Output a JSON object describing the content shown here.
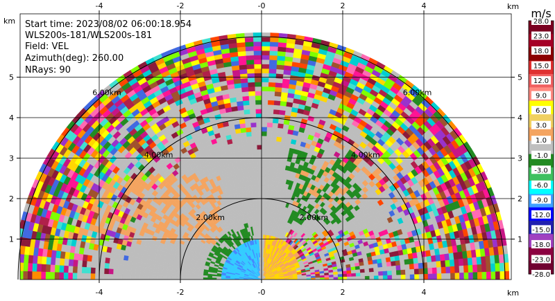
{
  "info": {
    "start_time": "Start time: 2023/08/02 06:00:18.954",
    "instrument": "WLS200s-181/WLS200s-181",
    "field": "Field: VEL",
    "azimuth": "Azimuth(deg): 260.00",
    "nrays": "NRays: 90"
  },
  "axes": {
    "x_ticks": [
      "-4",
      "-2",
      "-0",
      "2",
      "4"
    ],
    "x_tick_values": [
      -4,
      -2,
      0,
      2,
      4
    ],
    "y_ticks": [
      "1",
      "2",
      "3",
      "4",
      "5"
    ],
    "y_tick_values": [
      1,
      2,
      3,
      4,
      5
    ],
    "unit": "km",
    "x_range": [
      -5.95,
      6.05
    ],
    "y_range": [
      0,
      5.95
    ]
  },
  "rings": {
    "labels": [
      "2.00km",
      "4.00km",
      "6.00km"
    ],
    "radii_km": [
      2,
      4,
      6
    ]
  },
  "colorbar": {
    "unit": "m/s",
    "labels": [
      "28.0",
      "23.0",
      "18.0",
      "15.0",
      "12.0",
      "9.0",
      "6.0",
      "3.0",
      "1.0",
      "-1.0",
      "-3.0",
      "-6.0",
      "-9.0",
      "-12.0",
      "-15.0",
      "-18.0",
      "-23.0",
      "-28.0"
    ],
    "colors": [
      "#7a0020",
      "#a50026",
      "#8b0000",
      "#e03030",
      "#f06060",
      "#ff8a80",
      "#ffff00",
      "#f0d060",
      "#f4a460",
      "#bfbfbf",
      "#228b22",
      "#40c060",
      "#00ffff",
      "#40a0ff",
      "#0000ff",
      "#2020b0",
      "#a040c0",
      "#8b0040",
      "#700030"
    ]
  },
  "colors": {
    "background_gray": "#bdbdbd",
    "orange": "#f4a460",
    "green": "#228b22",
    "cyan": "#33ccff",
    "yellow": "#ffd700",
    "maroon": "#8b1a3a"
  }
}
